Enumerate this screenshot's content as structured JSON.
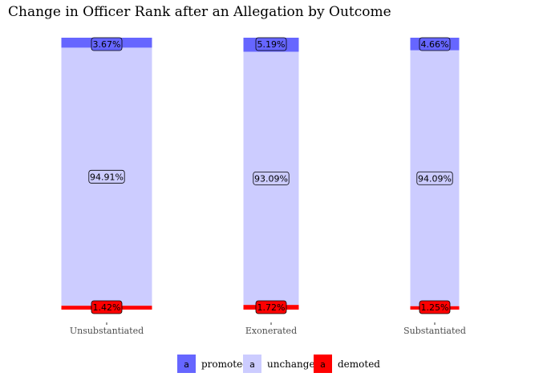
{
  "chart_data": {
    "type": "bar",
    "stacked": true,
    "normalized": true,
    "title": "Change in Officer Rank after an Allegation by Outcome",
    "xlabel": "",
    "ylabel": "",
    "ylim": [
      0,
      1
    ],
    "grid": false,
    "legend_position": "bottom",
    "categories": [
      "Unsubstantiated",
      "Exonerated",
      "Substantiated"
    ],
    "series": [
      {
        "name": "promoted",
        "color": "#6666ff",
        "values": [
          3.67,
          5.19,
          4.66
        ],
        "labels": [
          "3.67%",
          "5.19%",
          "4.66%"
        ]
      },
      {
        "name": "unchanged",
        "color": "#ccccff",
        "values": [
          94.91,
          93.09,
          94.09
        ],
        "labels": [
          "94.91%",
          "93.09%",
          "94.09%"
        ]
      },
      {
        "name": "demoted",
        "color": "#ff0000",
        "values": [
          1.42,
          1.72,
          1.25
        ],
        "labels": [
          "1.42%",
          "1.72%",
          "1.25%"
        ]
      }
    ],
    "legend_key_glyph": "a"
  }
}
